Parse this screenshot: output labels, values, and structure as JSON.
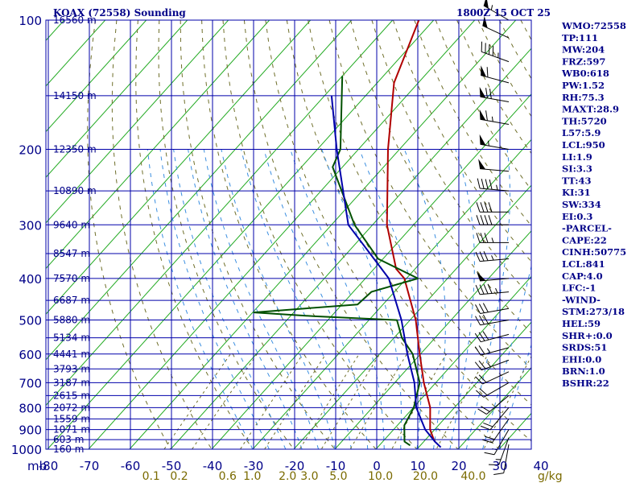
{
  "header": {
    "station": "KOAX (72558) Sounding",
    "time": "1800Z 15 OCT 25"
  },
  "indices": [
    "WMO:72558",
    "TP:111",
    "MW:204",
    "FRZ:597",
    "WB0:618",
    "PW:1.52",
    "RH:75.3",
    "MAXT:28.9",
    "TH:5720",
    "L57:5.9",
    "LCL:950",
    "LI:1.9",
    "SI:3.3",
    "TT:43",
    "KI:31",
    "SW:334",
    "EI:0.3",
    "-PARCEL-",
    "CAPE:22",
    "CINH:50775",
    "LCL:841",
    "CAP:4.0",
    "LFC:-1",
    "-WIND-",
    "STM:273/18",
    "HEL:59",
    "SHR+:0.0",
    "SRDS:51",
    "EHI:0.0",
    "BRN:1.0",
    "BSHR:22"
  ],
  "chart_data": {
    "type": "skew-t",
    "pressure_unit": "mb",
    "temperature_unit": "°C",
    "mixing_ratio_unit": "g/kg",
    "pressure_range": [
      1000,
      100
    ],
    "temperature_range": [
      -80,
      40
    ],
    "pressure_ticks": [
      100,
      200,
      300,
      400,
      500,
      600,
      700,
      800,
      900,
      1000
    ],
    "pressure_tick_labels": [
      "100",
      "200",
      "300",
      "400",
      "500",
      "600",
      "700",
      "800",
      "900",
      "1000"
    ],
    "isobar_lines": [
      100,
      150,
      200,
      250,
      300,
      350,
      400,
      450,
      500,
      550,
      600,
      650,
      700,
      750,
      800,
      850,
      900,
      950,
      1000
    ],
    "temperature_ticks": [
      -80,
      -70,
      -60,
      -50,
      -40,
      -30,
      -20,
      -10,
      0,
      10,
      20,
      30,
      40
    ],
    "temperature_tick_labels": [
      "-80",
      "-70",
      "-60",
      "-50",
      "-40",
      "-30",
      "-20",
      "-10",
      "0",
      "10",
      "20",
      "30",
      "40"
    ],
    "mixing_ratio_ticks": [
      0.1,
      0.2,
      0.6,
      1.0,
      2.0,
      3.0,
      5.0,
      10.0,
      20.0,
      40.0
    ],
    "mixing_ratio_tick_labels": [
      "0.1",
      "0.2",
      "0.6",
      "1.0",
      "2.0",
      "3.0",
      "5.0",
      "10.0",
      "20.0",
      "40.0"
    ],
    "height_labels": [
      {
        "p": 100,
        "label": "16560 m"
      },
      {
        "p": 150,
        "label": "14150 m"
      },
      {
        "p": 200,
        "label": "12350 m"
      },
      {
        "p": 250,
        "label": "10890 m"
      },
      {
        "p": 300,
        "label": "9640 m"
      },
      {
        "p": 350,
        "label": "8547 m"
      },
      {
        "p": 400,
        "label": "7570 m"
      },
      {
        "p": 450,
        "label": "6687 m"
      },
      {
        "p": 500,
        "label": "5880 m"
      },
      {
        "p": 550,
        "label": "5134 m"
      },
      {
        "p": 600,
        "label": "4441 m"
      },
      {
        "p": 650,
        "label": "3793 m"
      },
      {
        "p": 700,
        "label": "3187 m"
      },
      {
        "p": 750,
        "label": "2615 m"
      },
      {
        "p": 800,
        "label": "2072 m"
      },
      {
        "p": 850,
        "label": "1559 m"
      },
      {
        "p": 900,
        "label": "1071 m"
      },
      {
        "p": 950,
        "label": "603 m"
      },
      {
        "p": 1000,
        "label": "160 m"
      }
    ],
    "series": [
      {
        "color": "#b00000",
        "points": [
          [
            100,
            -73.6
          ],
          [
            140,
            -65.9
          ],
          [
            200,
            -52.8
          ],
          [
            300,
            -36.5
          ],
          [
            380,
            -24.6
          ],
          [
            400,
            -20.5
          ],
          [
            500,
            -8.6
          ],
          [
            600,
            -0.2
          ],
          [
            700,
            7.1
          ],
          [
            800,
            14.1
          ],
          [
            900,
            18.9
          ],
          [
            950,
            22.0
          ],
          [
            960,
            22.7
          ]
        ]
      },
      {
        "color": "#005000",
        "points": [
          [
            135,
            -80
          ],
          [
            200,
            -64.4
          ],
          [
            220,
            -62.4
          ],
          [
            300,
            -44.4
          ],
          [
            360,
            -31.2
          ],
          [
            400,
            -17.2
          ],
          [
            430,
            -25.6
          ],
          [
            460,
            -26.2
          ],
          [
            480,
            -49.7
          ],
          [
            490,
            -34.0
          ],
          [
            500,
            -13.2
          ],
          [
            550,
            -8.1
          ],
          [
            600,
            -1.9
          ],
          [
            700,
            6.1
          ],
          [
            800,
            10.1
          ],
          [
            880,
            11.7
          ],
          [
            960,
            15.3
          ],
          [
            980,
            17.5
          ]
        ]
      },
      {
        "color": "#0000aa",
        "points": [
          [
            150,
            -78.3
          ],
          [
            200,
            -65.3
          ],
          [
            300,
            -45.9
          ],
          [
            400,
            -24.3
          ],
          [
            500,
            -12.1
          ],
          [
            600,
            -3.2
          ],
          [
            700,
            4.8
          ],
          [
            800,
            10.7
          ],
          [
            900,
            17.7
          ],
          [
            960,
            22.7
          ],
          [
            990,
            25.4
          ]
        ]
      }
    ],
    "winds": [
      {
        "p": 100,
        "dir": 300,
        "spd": 55
      },
      {
        "p": 110,
        "dir": 295,
        "spd": 50
      },
      {
        "p": 125,
        "dir": 290,
        "spd": 45
      },
      {
        "p": 140,
        "dir": 285,
        "spd": 60
      },
      {
        "p": 155,
        "dir": 280,
        "spd": 70
      },
      {
        "p": 175,
        "dir": 280,
        "spd": 65
      },
      {
        "p": 200,
        "dir": 280,
        "spd": 55
      },
      {
        "p": 225,
        "dir": 275,
        "spd": 50
      },
      {
        "p": 250,
        "dir": 275,
        "spd": 45
      },
      {
        "p": 280,
        "dir": 270,
        "spd": 40
      },
      {
        "p": 300,
        "dir": 270,
        "spd": 40
      },
      {
        "p": 330,
        "dir": 270,
        "spd": 35
      },
      {
        "p": 360,
        "dir": 265,
        "spd": 35
      },
      {
        "p": 400,
        "dir": 265,
        "spd": 50
      },
      {
        "p": 430,
        "dir": 265,
        "spd": 45
      },
      {
        "p": 470,
        "dir": 260,
        "spd": 30
      },
      {
        "p": 500,
        "dir": 260,
        "spd": 30
      },
      {
        "p": 540,
        "dir": 255,
        "spd": 30
      },
      {
        "p": 580,
        "dir": 255,
        "spd": 25
      },
      {
        "p": 620,
        "dir": 250,
        "spd": 25
      },
      {
        "p": 660,
        "dir": 245,
        "spd": 20
      },
      {
        "p": 700,
        "dir": 240,
        "spd": 20
      },
      {
        "p": 750,
        "dir": 230,
        "spd": 20
      },
      {
        "p": 800,
        "dir": 220,
        "spd": 20
      },
      {
        "p": 850,
        "dir": 215,
        "spd": 20
      },
      {
        "p": 900,
        "dir": 210,
        "spd": 15
      },
      {
        "p": 940,
        "dir": 200,
        "spd": 15
      },
      {
        "p": 975,
        "dir": 190,
        "spd": 10
      }
    ],
    "grid": true
  }
}
